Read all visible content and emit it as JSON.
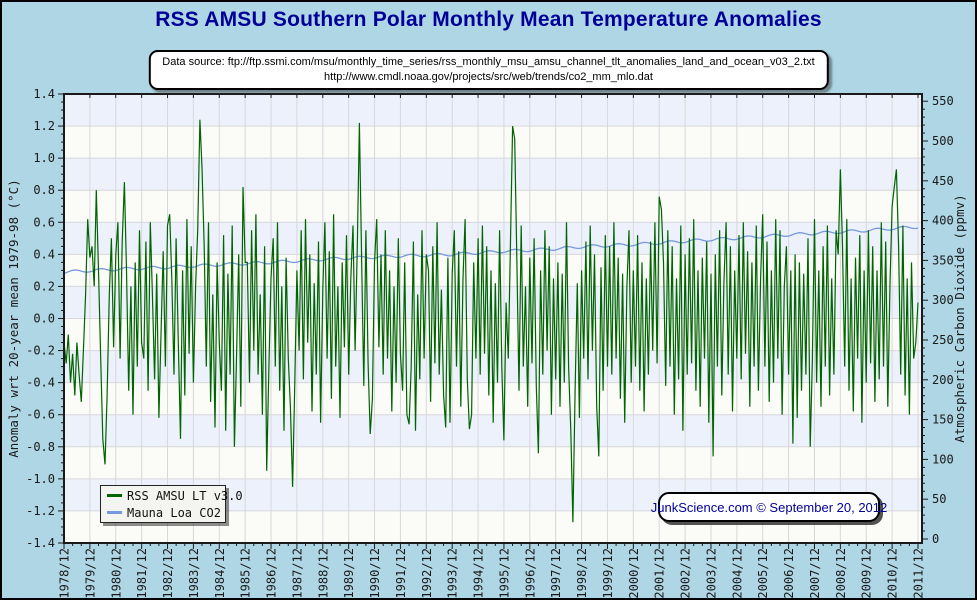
{
  "header": {
    "title": "RSS AMSU Southern Polar Monthly Mean Temperature Anomalies",
    "title_color": "#000099"
  },
  "source_box": {
    "line1": "Data source: ftp://ftp.ssmi.com/msu/monthly_time_series/rss_monthly_msu_amsu_channel_tlt_anomalies_land_and_ocean_v03_2.txt",
    "line2": "http://www.cmdl.noaa.gov/projects/src/web/trends/co2_mm_mlo.dat"
  },
  "legend": {
    "items": [
      {
        "label": "RSS AMSU LT v3.0",
        "color": "#006400"
      },
      {
        "label": "Mauna Loa CO2",
        "color": "#7799dd"
      }
    ]
  },
  "footer_box": {
    "text": "JunkScience.com © September 20, 2012"
  },
  "chart_data": {
    "type": "line",
    "title": "RSS AMSU Southern Polar Monthly Mean Temperature Anomalies",
    "x_axis": {
      "start": "1978/12",
      "end": "2011/12",
      "months_total": 397,
      "months_per_minor_tick": 4,
      "tick_labels": [
        "1978/12",
        "1979/12",
        "1980/12",
        "1981/12",
        "1982/12",
        "1983/12",
        "1984/12",
        "1985/12",
        "1986/12",
        "1987/12",
        "1988/12",
        "1989/12",
        "1990/12",
        "1991/12",
        "1992/12",
        "1993/12",
        "1994/12",
        "1995/12",
        "1996/12",
        "1997/12",
        "1998/12",
        "1999/12",
        "2000/12",
        "2001/12",
        "2002/12",
        "2003/12",
        "2004/12",
        "2005/12",
        "2006/12",
        "2007/12",
        "2008/12",
        "2009/12",
        "2010/12",
        "2011/12"
      ]
    },
    "y_axis_left": {
      "label": "Anomaly wrt 20-year mean 1979-98 (°C)",
      "min": -1.4,
      "max": 1.4,
      "major_step": 0.2,
      "minor_step": 0.05
    },
    "y_axis_right": {
      "label": "Atmospheric Carbon Dioxide (ppmv)",
      "min": 0,
      "max": 550,
      "major_step": 50,
      "minor_step": 10,
      "anomaly_at_0ppm": -1.375,
      "anomaly_at_550ppm": 1.355
    },
    "series": [
      {
        "name": "RSS AMSU LT v3.0",
        "color": "#006400",
        "axis": "left",
        "monthly_values": [
          -0.15,
          -0.28,
          -0.1,
          -0.4,
          -0.22,
          -0.48,
          -0.15,
          -0.35,
          -0.52,
          -0.2,
          0.15,
          0.62,
          0.38,
          0.45,
          0.2,
          0.8,
          0.3,
          -0.25,
          -0.75,
          -0.91,
          -0.48,
          0.15,
          0.5,
          -0.18,
          0.4,
          0.6,
          -0.25,
          0.48,
          0.85,
          0.3,
          -0.45,
          0.2,
          -0.6,
          0.35,
          -0.3,
          0.55,
          -0.15,
          -0.25,
          0.48,
          -0.45,
          0.6,
          0.15,
          -0.38,
          0.28,
          -0.62,
          -0.1,
          0.42,
          -0.3,
          0.58,
          0.65,
          0.25,
          -0.35,
          0.5,
          -0.15,
          -0.75,
          0.3,
          -0.48,
          0.62,
          -0.22,
          0.45,
          -0.4,
          0.2,
          0.55,
          1.24,
          0.94,
          0.45,
          -0.3,
          0.6,
          -0.52,
          0.15,
          -0.68,
          0.35,
          -0.15,
          -0.45,
          0.52,
          -0.7,
          0.28,
          -0.35,
          0.58,
          -0.8,
          -0.25,
          0.4,
          -0.55,
          0.82,
          0.35,
          0.35,
          -0.4,
          0.55,
          -0.2,
          0.65,
          -0.35,
          0.15,
          -0.6,
          0.45,
          -0.95,
          -0.3,
          0.25,
          0.5,
          -0.3,
          0.6,
          -0.45,
          0.2,
          -0.7,
          0.38,
          -0.25,
          -0.55,
          -1.05,
          -0.4,
          0.3,
          -0.2,
          0.55,
          -0.38,
          0.62,
          -0.15,
          0.4,
          -0.58,
          0.22,
          -0.35,
          0.48,
          -0.65,
          0.18,
          0.6,
          -0.25,
          0.42,
          -0.5,
          0.65,
          -0.3,
          0.2,
          -0.62,
          0.35,
          -0.18,
          0.52,
          -0.35,
          0.25,
          0.58,
          -0.2,
          0.45,
          1.22,
          0.38,
          -0.42,
          0.55,
          -0.28,
          -0.72,
          -0.5,
          0.35,
          0.62,
          -0.18,
          0.4,
          -0.35,
          0.55,
          -0.25,
          0.3,
          -0.58,
          0.2,
          -0.4,
          0.5,
          -0.22,
          -0.45,
          0.35,
          -0.6,
          -0.66,
          -0.3,
          0.48,
          -0.7,
          0.15,
          -0.38,
          0.55,
          -0.25,
          0.4,
          0.3,
          -0.52,
          0.45,
          -0.28,
          0.6,
          -0.35,
          0.18,
          -0.48,
          -0.68,
          0.38,
          -0.65,
          0.28,
          0.55,
          -0.3,
          0.42,
          -0.55,
          0.25,
          0.62,
          -0.38,
          -0.69,
          -0.6,
          0.35,
          -0.25,
          0.5,
          -0.35,
          0.58,
          -0.22,
          0.45,
          -0.48,
          0.3,
          -0.65,
          0.22,
          -0.4,
          0.55,
          -0.3,
          -0.76,
          0.1,
          -0.25,
          0.45,
          1.2,
          1.12,
          0.35,
          -0.45,
          0.58,
          -0.3,
          0.2,
          -0.55,
          0.38,
          -0.28,
          0.5,
          -0.42,
          -0.84,
          0.3,
          -0.35,
          0.55,
          -0.2,
          0.45,
          -0.6,
          0.25,
          -0.38,
          0.35,
          -0.55,
          0.28,
          -0.4,
          0.6,
          -0.3,
          -0.7,
          -1.27,
          -0.45,
          0.22,
          -0.62,
          0.3,
          -0.25,
          0.48,
          -0.38,
          0.58,
          -0.2,
          0.4,
          -0.55,
          -0.86,
          0.32,
          -0.45,
          0.52,
          -0.3,
          0.45,
          -0.35,
          0.6,
          -0.25,
          0.38,
          -0.5,
          0.28,
          -0.65,
          0.2,
          0.55,
          -0.4,
          0.3,
          -0.3,
          0.52,
          -0.45,
          0.35,
          -0.58,
          0.25,
          -0.35,
          0.48,
          -0.2,
          0.6,
          -0.28,
          0.76,
          0.68,
          0.35,
          -0.42,
          0.55,
          -0.3,
          0.45,
          -0.6,
          0.25,
          -0.38,
          0.58,
          -0.7,
          0.4,
          -0.35,
          0.5,
          -0.28,
          0.62,
          -0.45,
          0.3,
          -0.55,
          0.38,
          -0.25,
          0.48,
          -0.65,
          0.28,
          -0.86,
          0.4,
          -0.3,
          0.55,
          -0.48,
          0.22,
          0.6,
          -0.35,
          0.45,
          -0.58,
          0.3,
          -0.25,
          0.52,
          -0.38,
          0.6,
          -0.22,
          0.42,
          -0.55,
          0.35,
          -0.3,
          0.58,
          -0.45,
          0.25,
          0.65,
          -0.3,
          0.48,
          -0.52,
          0.3,
          -0.4,
          0.62,
          -0.25,
          0.55,
          -0.6,
          0.2,
          0.45,
          -0.35,
          0.3,
          -0.78,
          0.4,
          -0.62,
          0.35,
          -0.45,
          0.28,
          -0.35,
          0.5,
          -0.8,
          -0.28,
          0.62,
          -0.4,
          0.3,
          -0.55,
          0.45,
          -0.3,
          0.58,
          -0.48,
          0.25,
          -0.35,
          0.55,
          0.4,
          0.93,
          0.45,
          -0.3,
          0.62,
          -0.45,
          0.25,
          -0.58,
          0.38,
          -0.25,
          0.52,
          -0.65,
          0.3,
          -0.4,
          0.55,
          -0.28,
          0.45,
          -0.52,
          0.3,
          -0.38,
          0.6,
          -0.3,
          0.48,
          -0.55,
          0.22,
          0.7,
          0.82,
          0.93,
          0.45,
          -0.35,
          0.58,
          -0.48,
          0.25,
          -0.6,
          0.35,
          -0.25,
          -0.15,
          0.1
        ]
      },
      {
        "name": "Mauna Loa CO2",
        "color": "#7799dd",
        "axis": "right",
        "december_values_ppm": [
          335.4,
          337.2,
          338.9,
          340.1,
          341.4,
          343.0,
          344.6,
          346.1,
          347.6,
          349.3,
          351.4,
          353.0,
          354.2,
          355.6,
          356.4,
          357.6,
          359.5,
          361.5,
          363.0,
          364.6,
          367.1,
          368.7,
          370.0,
          371.9,
          374.1,
          376.2,
          377.9,
          380.2,
          382.2,
          384.0,
          385.8,
          387.6,
          390.0,
          392.0
        ],
        "seasonal_amplitude_ppm": 1.8
      }
    ],
    "plot_style": {
      "band_colors": [
        "#edf1fb",
        "#fbfbf8"
      ],
      "band_step": 0.2,
      "grid_color": "#d8d8dc",
      "frame_color": "#1a1a1a",
      "background": "#afd6e5",
      "legend_position": "bottom-left-inside"
    }
  }
}
